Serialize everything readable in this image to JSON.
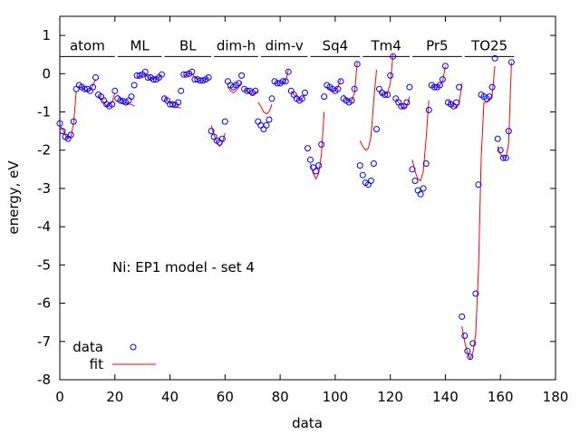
{
  "chart_data": {
    "type": "scatter",
    "xlabel": "data",
    "ylabel": "energy, eV",
    "xlim": [
      0,
      180
    ],
    "ylim": [
      -8,
      1.5
    ],
    "xticks": [
      0,
      20,
      40,
      60,
      80,
      100,
      120,
      140,
      160,
      180
    ],
    "yticks": [
      1,
      0,
      -1,
      -2,
      -3,
      -4,
      -5,
      -6,
      -7,
      -8
    ],
    "annotation": "Ni: EP1 model - set 4",
    "legend": {
      "position": "bottom-left",
      "entries": [
        "data",
        "fit"
      ]
    },
    "series_colors": {
      "data": "#0000ff",
      "fit": "#ff0000"
    },
    "segments": [
      {
        "label": "atom",
        "x": [
          0,
          20
        ]
      },
      {
        "label": "ML",
        "x": [
          21,
          37
        ]
      },
      {
        "label": "BL",
        "x": [
          38,
          55
        ]
      },
      {
        "label": "dim-h",
        "x": [
          56,
          72
        ]
      },
      {
        "label": "dim-v",
        "x": [
          73,
          90
        ]
      },
      {
        "label": "Sq4",
        "x": [
          91,
          109
        ]
      },
      {
        "label": "Tm4",
        "x": [
          110,
          127
        ]
      },
      {
        "label": "Pr5",
        "x": [
          128,
          146
        ]
      },
      {
        "label": "TO25",
        "x": [
          147,
          165
        ]
      }
    ],
    "data_points": [
      [
        0,
        -1.3
      ],
      [
        1,
        -1.5
      ],
      [
        2,
        -1.65
      ],
      [
        3,
        -1.7
      ],
      [
        4,
        -1.6
      ],
      [
        5,
        -1.25
      ],
      [
        6,
        -0.4
      ],
      [
        7,
        -0.3
      ],
      [
        8,
        -0.35
      ],
      [
        9,
        -0.4
      ],
      [
        10,
        -0.4
      ],
      [
        11,
        -0.45
      ],
      [
        12,
        -0.35
      ],
      [
        13,
        -0.1
      ],
      [
        14,
        -0.55
      ],
      [
        15,
        -0.6
      ],
      [
        16,
        -0.7
      ],
      [
        17,
        -0.8
      ],
      [
        18,
        -0.85
      ],
      [
        19,
        -0.8
      ],
      [
        20,
        -0.45
      ],
      [
        21,
        -0.65
      ],
      [
        22,
        -0.7
      ],
      [
        23,
        -0.72
      ],
      [
        24,
        -0.75
      ],
      [
        25,
        -0.7
      ],
      [
        26,
        -0.6
      ],
      [
        27,
        -0.3
      ],
      [
        28,
        -0.05
      ],
      [
        29,
        -0.05
      ],
      [
        30,
        -0.02
      ],
      [
        31,
        0.05
      ],
      [
        32,
        -0.1
      ],
      [
        33,
        -0.1
      ],
      [
        34,
        -0.15
      ],
      [
        35,
        -0.15
      ],
      [
        36,
        -0.1
      ],
      [
        37,
        -0.02
      ],
      [
        38,
        -0.65
      ],
      [
        39,
        -0.7
      ],
      [
        40,
        -0.8
      ],
      [
        41,
        -0.8
      ],
      [
        42,
        -0.82
      ],
      [
        43,
        -0.75
      ],
      [
        44,
        -0.45
      ],
      [
        45,
        -0.02
      ],
      [
        46,
        -0.02
      ],
      [
        47,
        0.0
      ],
      [
        48,
        0.05
      ],
      [
        49,
        -0.15
      ],
      [
        50,
        -0.15
      ],
      [
        51,
        -0.18
      ],
      [
        52,
        -0.18
      ],
      [
        53,
        -0.15
      ],
      [
        54,
        -0.1
      ],
      [
        55,
        -1.5
      ],
      [
        56,
        -1.65
      ],
      [
        57,
        -1.75
      ],
      [
        58,
        -1.8
      ],
      [
        59,
        -1.7
      ],
      [
        60,
        -1.25
      ],
      [
        61,
        -0.2
      ],
      [
        62,
        -0.3
      ],
      [
        63,
        -0.35
      ],
      [
        64,
        -0.3
      ],
      [
        65,
        -0.25
      ],
      [
        66,
        -0.05
      ],
      [
        67,
        -0.4
      ],
      [
        68,
        -0.45
      ],
      [
        69,
        -0.45
      ],
      [
        70,
        -0.5
      ],
      [
        71,
        -0.45
      ],
      [
        72,
        -1.25
      ],
      [
        73,
        -1.35
      ],
      [
        74,
        -1.45
      ],
      [
        75,
        -1.35
      ],
      [
        76,
        -1.2
      ],
      [
        77,
        -0.65
      ],
      [
        78,
        -0.2
      ],
      [
        79,
        -0.25
      ],
      [
        80,
        -0.25
      ],
      [
        81,
        -0.2
      ],
      [
        82,
        -0.2
      ],
      [
        83,
        0.05
      ],
      [
        84,
        -0.45
      ],
      [
        85,
        -0.55
      ],
      [
        86,
        -0.65
      ],
      [
        87,
        -0.7
      ],
      [
        88,
        -0.65
      ],
      [
        89,
        -0.5
      ],
      [
        90,
        -1.95
      ],
      [
        91,
        -2.25
      ],
      [
        92,
        -2.45
      ],
      [
        93,
        -2.55
      ],
      [
        94,
        -2.4
      ],
      [
        95,
        -1.85
      ],
      [
        96,
        -0.6
      ],
      [
        97,
        -0.3
      ],
      [
        98,
        -0.35
      ],
      [
        99,
        -0.4
      ],
      [
        100,
        -0.45
      ],
      [
        101,
        -0.4
      ],
      [
        102,
        -0.2
      ],
      [
        103,
        -0.65
      ],
      [
        104,
        -0.7
      ],
      [
        105,
        -0.75
      ],
      [
        106,
        -0.7
      ],
      [
        107,
        -0.4
      ],
      [
        108,
        0.25
      ],
      [
        109,
        -2.4
      ],
      [
        110,
        -2.65
      ],
      [
        111,
        -2.85
      ],
      [
        112,
        -2.9
      ],
      [
        113,
        -2.8
      ],
      [
        114,
        -2.35
      ],
      [
        115,
        -1.45
      ],
      [
        116,
        -0.4
      ],
      [
        117,
        -0.5
      ],
      [
        118,
        -0.55
      ],
      [
        119,
        -0.55
      ],
      [
        120,
        -0.05
      ],
      [
        121,
        0.45
      ],
      [
        122,
        -0.65
      ],
      [
        123,
        -0.75
      ],
      [
        124,
        -0.85
      ],
      [
        125,
        -0.85
      ],
      [
        126,
        -0.75
      ],
      [
        127,
        -0.35
      ],
      [
        128,
        -2.5
      ],
      [
        129,
        -2.8
      ],
      [
        130,
        -3.05
      ],
      [
        131,
        -3.15
      ],
      [
        132,
        -3.0
      ],
      [
        133,
        -2.35
      ],
      [
        134,
        -0.95
      ],
      [
        135,
        -0.3
      ],
      [
        136,
        -0.35
      ],
      [
        137,
        -0.35
      ],
      [
        138,
        -0.3
      ],
      [
        139,
        -0.15
      ],
      [
        140,
        0.2
      ],
      [
        141,
        -0.75
      ],
      [
        142,
        -0.8
      ],
      [
        143,
        -0.85
      ],
      [
        144,
        -0.75
      ],
      [
        145,
        -0.35
      ],
      [
        146,
        -6.35
      ],
      [
        147,
        -6.85
      ],
      [
        148,
        -7.25
      ],
      [
        149,
        -7.4
      ],
      [
        150,
        -7.05
      ],
      [
        151,
        -5.75
      ],
      [
        152,
        -2.9
      ],
      [
        153,
        -0.55
      ],
      [
        154,
        -0.6
      ],
      [
        155,
        -0.65
      ],
      [
        156,
        -0.6
      ],
      [
        157,
        -0.35
      ],
      [
        158,
        0.4
      ],
      [
        159,
        -1.7
      ],
      [
        160,
        -2.0
      ],
      [
        161,
        -2.2
      ],
      [
        162,
        -2.2
      ],
      [
        163,
        -1.5
      ],
      [
        164,
        0.3
      ]
    ],
    "fit_segments": [
      [
        [
          0,
          -1.35
        ],
        [
          1,
          -1.45
        ],
        [
          2,
          -1.6
        ],
        [
          3,
          -1.7
        ],
        [
          4,
          -1.65
        ],
        [
          5,
          -1.3
        ],
        [
          6,
          -0.45
        ]
      ],
      [
        [
          7,
          -0.35
        ],
        [
          8,
          -0.35
        ],
        [
          9,
          -0.42
        ],
        [
          10,
          -0.45
        ],
        [
          11,
          -0.45
        ],
        [
          12,
          -0.3
        ],
        [
          13,
          -0.15
        ]
      ],
      [
        [
          14,
          -0.6
        ],
        [
          15,
          -0.65
        ],
        [
          16,
          -0.75
        ],
        [
          17,
          -0.85
        ],
        [
          18,
          -0.8
        ],
        [
          19,
          -0.75
        ],
        [
          20,
          -0.5
        ]
      ],
      [
        [
          21,
          -0.55
        ],
        [
          22,
          -0.65
        ],
        [
          23,
          -0.72
        ],
        [
          24,
          -0.78
        ],
        [
          25,
          -0.8
        ],
        [
          26,
          -0.8
        ],
        [
          27,
          -0.85
        ]
      ],
      [
        [
          28,
          -0.1
        ],
        [
          29,
          -0.05
        ],
        [
          30,
          -0.05
        ],
        [
          31,
          0.0
        ],
        [
          32,
          -0.1
        ],
        [
          33,
          -0.12
        ],
        [
          34,
          -0.12
        ],
        [
          35,
          -0.15
        ],
        [
          36,
          -0.1
        ],
        [
          37,
          -0.02
        ]
      ],
      [
        [
          38,
          -0.6
        ],
        [
          39,
          -0.7
        ],
        [
          40,
          -0.75
        ],
        [
          41,
          -0.8
        ],
        [
          42,
          -0.85
        ],
        [
          43,
          -0.88
        ],
        [
          44,
          -0.9
        ]
      ],
      [
        [
          45,
          -0.05
        ],
        [
          46,
          -0.02
        ],
        [
          47,
          0.0
        ],
        [
          48,
          0.0
        ],
        [
          49,
          -0.1
        ],
        [
          50,
          -0.15
        ],
        [
          51,
          -0.18
        ],
        [
          52,
          -0.18
        ],
        [
          53,
          -0.15
        ],
        [
          54,
          -0.1
        ]
      ],
      [
        [
          55,
          -1.35
        ],
        [
          56,
          -1.6
        ],
        [
          57,
          -1.8
        ],
        [
          58,
          -1.9
        ],
        [
          59,
          -1.8
        ],
        [
          60,
          -1.55
        ]
      ],
      [
        [
          61,
          -0.35
        ],
        [
          62,
          -0.45
        ],
        [
          63,
          -0.5
        ],
        [
          64,
          -0.45
        ],
        [
          65,
          -0.35
        ],
        [
          66,
          -0.2
        ]
      ],
      [
        [
          67,
          -0.4
        ],
        [
          68,
          -0.45
        ],
        [
          69,
          -0.5
        ],
        [
          70,
          -0.55
        ],
        [
          71,
          -0.5
        ],
        [
          72,
          -0.45
        ]
      ],
      [
        [
          72,
          -0.75
        ],
        [
          73,
          -0.85
        ],
        [
          74,
          -1.0
        ],
        [
          75,
          -1.05
        ],
        [
          76,
          -1.0
        ],
        [
          77,
          -0.8
        ]
      ],
      [
        [
          78,
          -0.25
        ],
        [
          79,
          -0.25
        ],
        [
          80,
          -0.25
        ],
        [
          81,
          -0.22
        ],
        [
          82,
          -0.2
        ],
        [
          83,
          0.1
        ]
      ],
      [
        [
          84,
          -0.45
        ],
        [
          85,
          -0.55
        ],
        [
          86,
          -0.6
        ],
        [
          87,
          -0.7
        ],
        [
          88,
          -0.65
        ],
        [
          89,
          -0.55
        ]
      ],
      [
        [
          91,
          -2.35
        ],
        [
          92,
          -2.6
        ],
        [
          93,
          -2.75
        ],
        [
          94,
          -2.6
        ],
        [
          95,
          -2.1
        ],
        [
          96,
          -1.0
        ]
      ],
      [
        [
          97,
          -0.35
        ],
        [
          98,
          -0.4
        ],
        [
          99,
          -0.45
        ],
        [
          100,
          -0.45
        ],
        [
          101,
          -0.35
        ],
        [
          102,
          -0.15
        ]
      ],
      [
        [
          103,
          -0.55
        ],
        [
          104,
          -0.65
        ],
        [
          105,
          -0.7
        ],
        [
          106,
          -0.7
        ],
        [
          107,
          -0.5
        ],
        [
          108,
          0.3
        ]
      ],
      [
        [
          109,
          -1.75
        ],
        [
          110,
          -1.9
        ],
        [
          111,
          -2.0
        ],
        [
          112,
          -1.95
        ],
        [
          113,
          -1.65
        ],
        [
          114,
          -0.7
        ],
        [
          115,
          0.1
        ]
      ],
      [
        [
          116,
          -0.45
        ],
        [
          117,
          -0.55
        ],
        [
          118,
          -0.55
        ],
        [
          119,
          -0.5
        ],
        [
          120,
          -0.25
        ],
        [
          121,
          0.5
        ]
      ],
      [
        [
          122,
          -0.65
        ],
        [
          123,
          -0.75
        ],
        [
          124,
          -0.85
        ],
        [
          125,
          -0.9
        ],
        [
          126,
          -0.85
        ],
        [
          127,
          -0.6
        ]
      ],
      [
        [
          128,
          -2.25
        ],
        [
          129,
          -2.55
        ],
        [
          130,
          -2.75
        ],
        [
          131,
          -2.8
        ],
        [
          132,
          -2.55
        ],
        [
          133,
          -1.7
        ],
        [
          134,
          -0.7
        ]
      ],
      [
        [
          135,
          -0.3
        ],
        [
          136,
          -0.35
        ],
        [
          137,
          -0.35
        ],
        [
          138,
          -0.3
        ],
        [
          139,
          -0.2
        ],
        [
          140,
          0.2
        ]
      ],
      [
        [
          141,
          -0.7
        ],
        [
          142,
          -0.8
        ],
        [
          143,
          -0.85
        ],
        [
          144,
          -0.9
        ],
        [
          145,
          -0.8
        ],
        [
          146,
          -0.25
        ]
      ],
      [
        [
          146,
          -6.6
        ],
        [
          147,
          -7.0
        ],
        [
          148,
          -7.3
        ],
        [
          149,
          -7.45
        ],
        [
          150,
          -7.3
        ],
        [
          151,
          -6.8
        ],
        [
          152,
          -5.2
        ],
        [
          153,
          -2.2
        ],
        [
          154,
          -0.75
        ],
        [
          155,
          -0.75
        ],
        [
          156,
          -0.7
        ],
        [
          157,
          -0.55
        ],
        [
          158,
          0.2
        ]
      ],
      [
        [
          159,
          -1.9
        ],
        [
          160,
          -2.1
        ],
        [
          161,
          -2.2
        ],
        [
          162,
          -2.2
        ],
        [
          163,
          -1.8
        ],
        [
          164,
          0.3
        ]
      ]
    ]
  }
}
